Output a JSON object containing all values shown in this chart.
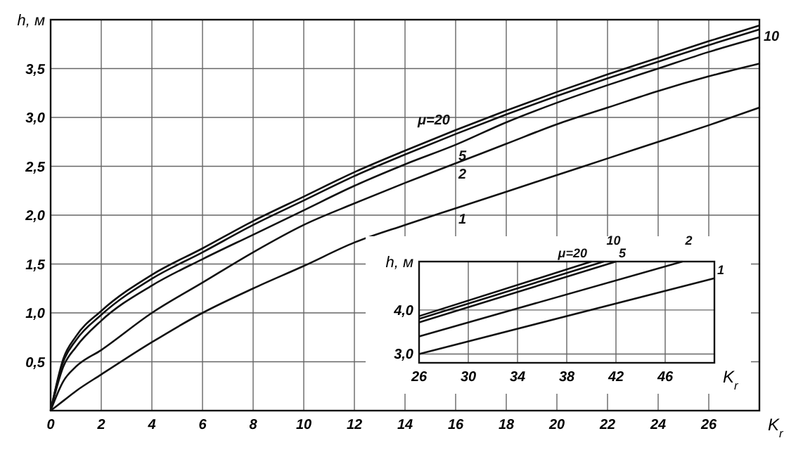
{
  "chart_data": [
    {
      "type": "line",
      "xlabel": "K$_{r}$",
      "ylabel": "h, м",
      "xlim": [
        0,
        28
      ],
      "xticks": [
        0,
        2,
        4,
        6,
        8,
        10,
        12,
        14,
        16,
        18,
        20,
        22,
        24,
        26
      ],
      "ylim": [
        0,
        4
      ],
      "yticks": [
        {
          "value": 0.5,
          "label": "0,5"
        },
        {
          "value": 1,
          "label": "1,0"
        },
        {
          "value": 1.5,
          "label": "1,5"
        },
        {
          "value": 2,
          "label": "2,0"
        },
        {
          "value": 2.5,
          "label": "2,5"
        },
        {
          "value": 3,
          "label": "3,0"
        },
        {
          "value": 3.5,
          "label": "3,5"
        }
      ],
      "grid": true,
      "x": [
        0,
        0.5,
        1,
        2,
        4,
        6,
        8,
        10,
        12,
        14,
        16,
        18,
        20,
        22,
        24,
        26,
        28
      ],
      "series": [
        {
          "name": "μ=20",
          "color": "#111111",
          "values": [
            0,
            0.53,
            0.76,
            1.02,
            1.39,
            1.66,
            1.94,
            2.19,
            2.44,
            2.66,
            2.87,
            3.07,
            3.26,
            3.44,
            3.61,
            3.78,
            3.94
          ]
        },
        {
          "name": "10",
          "color": "#111111",
          "values": [
            0,
            0.5,
            0.72,
            0.98,
            1.35,
            1.62,
            1.9,
            2.15,
            2.4,
            2.62,
            2.83,
            3.03,
            3.22,
            3.4,
            3.57,
            3.74,
            3.9
          ]
        },
        {
          "name": "5",
          "color": "#111111",
          "values": [
            0,
            0.45,
            0.65,
            0.92,
            1.28,
            1.55,
            1.8,
            2.05,
            2.3,
            2.52,
            2.72,
            2.95,
            3.15,
            3.33,
            3.5,
            3.67,
            3.82
          ]
        },
        {
          "name": "2",
          "color": "#111111",
          "values": [
            0,
            0.3,
            0.45,
            0.62,
            1.0,
            1.31,
            1.62,
            1.9,
            2.12,
            2.33,
            2.53,
            2.73,
            2.93,
            3.1,
            3.27,
            3.42,
            3.55
          ]
        },
        {
          "name": "1",
          "color": "#111111",
          "values": [
            0,
            0.1,
            0.2,
            0.37,
            0.7,
            1.0,
            1.25,
            1.48,
            1.72,
            1.9,
            2.07,
            2.24,
            2.41,
            2.58,
            2.75,
            2.92,
            3.1
          ]
        }
      ]
    },
    {
      "type": "line",
      "xlabel": "K$_{r}$",
      "ylabel": "h, м",
      "xlim": [
        26,
        50
      ],
      "xticks": [
        26,
        30,
        34,
        38,
        42,
        46
      ],
      "ylim": [
        2.8,
        5.1
      ],
      "yticks": [
        {
          "value": 3,
          "label": "3,0"
        },
        {
          "value": 4,
          "label": "4,0"
        }
      ],
      "grid": true,
      "series": [
        {
          "name": "μ=20",
          "color": "#111111",
          "x": [
            26,
            40
          ],
          "values": [
            3.86,
            5.1
          ]
        },
        {
          "name": "10",
          "color": "#111111",
          "x": [
            26,
            41
          ],
          "values": [
            3.8,
            5.1
          ]
        },
        {
          "name": "5",
          "color": "#111111",
          "x": [
            26,
            42
          ],
          "values": [
            3.72,
            5.1
          ]
        },
        {
          "name": "2",
          "color": "#111111",
          "x": [
            26,
            47.4
          ],
          "values": [
            3.4,
            5.1
          ]
        },
        {
          "name": "1",
          "color": "#111111",
          "x": [
            26,
            50
          ],
          "values": [
            3.0,
            4.72
          ]
        }
      ]
    }
  ]
}
